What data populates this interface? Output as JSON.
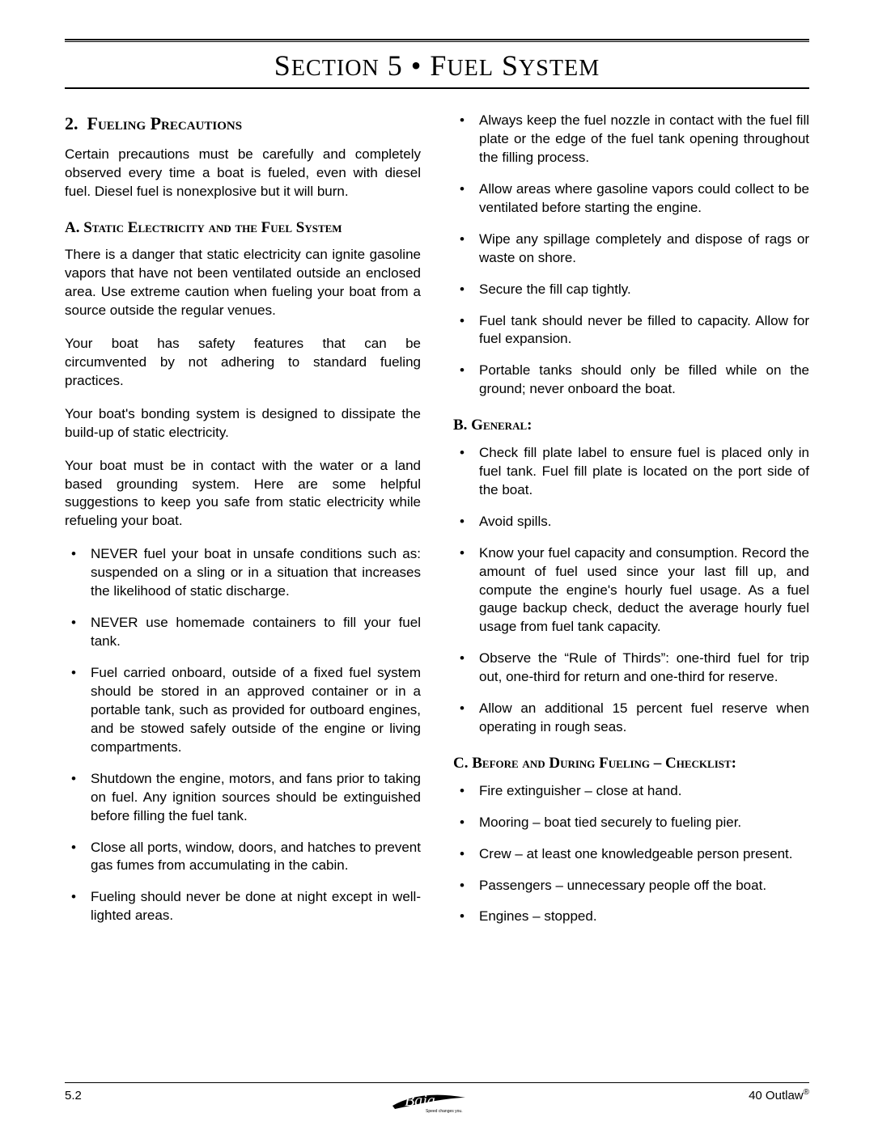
{
  "header": {
    "title_html": "S<span style='font-size:0.78em'>ECTION</span> 5 • F<span style='font-size:0.78em'>UEL</span> S<span style='font-size:0.78em'>YSTEM</span>"
  },
  "left": {
    "section_number": "2.",
    "section_title": "Fueling Precautions",
    "intro": "Certain precautions must be carefully and completely observed every time a boat is fueled, even with diesel fuel. Diesel fuel is nonexplosive but it will burn.",
    "sub_a_title": "A.  Static Electricity and the Fuel System",
    "a_p1": "There is a danger that static electricity can ignite gasoline vapors that have not been ventilated outside an enclosed area.  Use extreme caution when fueling your boat from a source outside the regular venues.",
    "a_p2": "Your boat has safety features that can be circumvented by not adhering to standard fueling practices.",
    "a_p3": "Your boat's bonding system is designed to dissipate the build-up of static electricity.",
    "a_p4": "Your boat must be in contact with the water or a land based grounding system.  Here are some helpful suggestions to keep you safe from static electricity while refueling your boat.",
    "a_bullets": [
      "NEVER fuel your boat in unsafe conditions such as:  suspended on a sling or in a situation that increases the likelihood of static discharge.",
      "NEVER use homemade containers to fill your fuel tank.",
      "Fuel carried onboard, outside of a fixed fuel system should be stored in an approved container or in a portable tank, such as provided for outboard engines, and be stowed safely outside of the engine or living compartments.",
      "Shutdown the engine, motors, and fans prior to taking on fuel.  Any ignition sources should be extinguished before filling the fuel tank.",
      "Close all ports, window, doors, and hatches to prevent gas fumes from accumulating in the cabin.",
      "Fueling should never be done at night except in well-lighted areas."
    ]
  },
  "right": {
    "a_bullets_cont": [
      "Always keep the fuel nozzle in contact with the fuel fill plate or the edge of the fuel tank opening throughout the filling process.",
      "Allow areas where gasoline vapors could collect to be ventilated before starting the engine.",
      "Wipe any spillage completely and dispose of rags or waste on shore.",
      "Secure the fill cap tightly.",
      "Fuel tank should never be filled to capacity.  Allow for fuel expansion.",
      "Portable tanks should only be filled while on the ground; never onboard the boat."
    ],
    "sub_b_title": "B.  General:",
    "b_bullets": [
      "Check fill plate label to ensure fuel is placed only in fuel tank.  Fuel fill plate is located on the port side of the boat.",
      "Avoid spills.",
      "Know your fuel capacity and consumption.  Record the amount of fuel used since your last fill up, and compute the engine's hourly fuel usage.  As a fuel gauge backup check, deduct the average hourly fuel usage from fuel tank capacity.",
      "Observe the “Rule of Thirds”:  one-third fuel for trip out, one-third for return and one-third for reserve.",
      "Allow an additional 15 percent fuel reserve when operating in rough seas."
    ],
    "sub_c_title": "C.  Before and  During Fueling – Checklist:",
    "c_bullets": [
      "Fire extinguisher – close at hand.",
      "Mooring – boat tied securely to fueling pier.",
      "Crew – at least one knowledgeable person present.",
      "Passengers – unnecessary people off the boat.",
      "Engines – stopped."
    ]
  },
  "footer": {
    "page": "5.2",
    "model": "40 Outlaw",
    "reg": "®",
    "logo_tagline": "Speed changes you."
  }
}
